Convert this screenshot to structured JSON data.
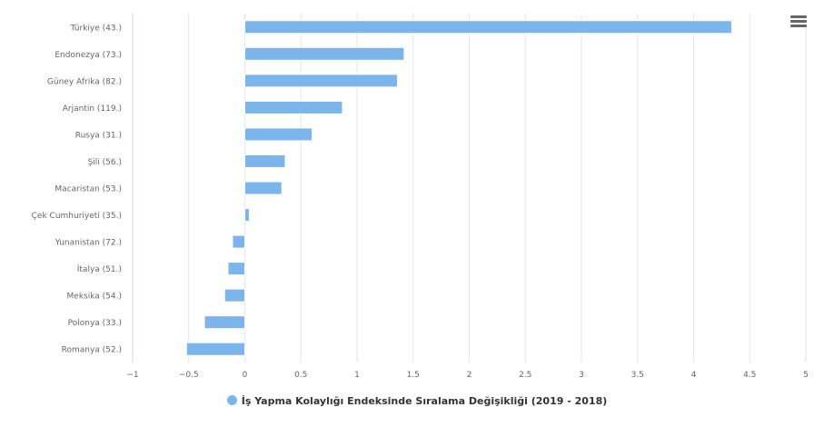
{
  "chart_data": {
    "type": "bar",
    "orientation": "horizontal",
    "categories": [
      "Türkiye (43.)",
      "Endonezya (73.)",
      "Güney Afrika (82.)",
      "Arjantin (119.)",
      "Rusya (31.)",
      "Şili (56.)",
      "Macaristan (53.)",
      "Çek Cumhuriyeti (35.)",
      "Yunanistan (72.)",
      "İtalya (51.)",
      "Meksika (54.)",
      "Polonya (33.)",
      "Romanya (52.)"
    ],
    "series": [
      {
        "name": "İş Yapma Kolaylığı Endeksinde Sıralama Değişikliği (2019 - 2018)",
        "values": [
          4.34,
          1.42,
          1.36,
          0.87,
          0.6,
          0.36,
          0.33,
          0.04,
          -0.11,
          -0.15,
          -0.18,
          -0.36,
          -0.52
        ],
        "color": "#7cb5ec"
      }
    ],
    "xlim": [
      -1,
      5
    ],
    "xticks": [
      "−1",
      "−0.5",
      "0",
      "0.5",
      "1",
      "1.5",
      "2",
      "2.5",
      "3",
      "3.5",
      "4",
      "4.5",
      "5"
    ],
    "grid": true,
    "legend": "bottom-center"
  },
  "menu_icon": "hamburger-icon"
}
